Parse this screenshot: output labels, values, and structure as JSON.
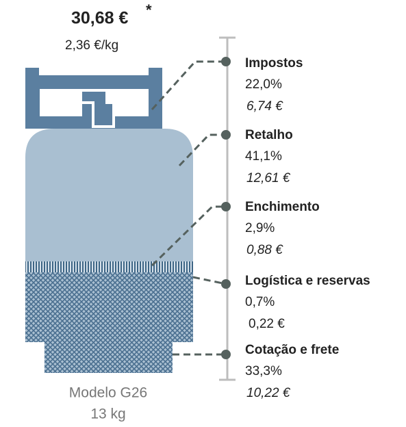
{
  "header": {
    "price": "30,68 €",
    "note_mark": "*",
    "price_per_kg": "2,36 €/kg"
  },
  "cylinder": {
    "model": "Modelo G26",
    "weight": "13 kg"
  },
  "items": [
    {
      "name": "Impostos",
      "percent": "22,0%",
      "amount": "6,74 €"
    },
    {
      "name": "Retalho",
      "percent": "41,1%",
      "amount": "12,61 €"
    },
    {
      "name": "Enchimento",
      "percent": "2,9%",
      "amount": "0,88 €"
    },
    {
      "name": "Logística e reservas",
      "percent": "0,7%",
      "amount": "0,22 €"
    },
    {
      "name": "Cotação e frete",
      "percent": "33,3%",
      "amount": "10,22 €"
    }
  ]
}
